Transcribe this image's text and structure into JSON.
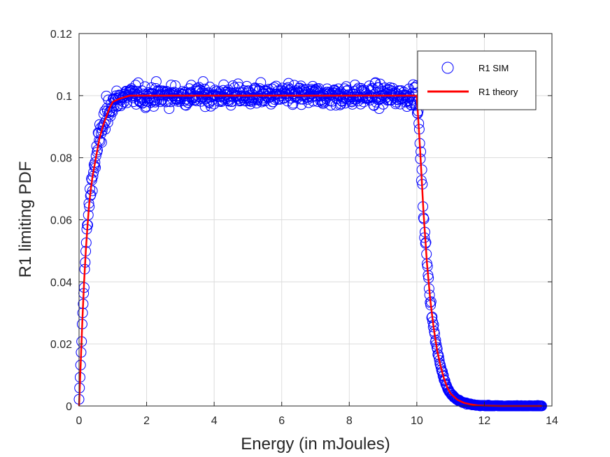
{
  "chart_data": {
    "type": "scatter",
    "title": "",
    "xlabel": "Energy (in mJoules)",
    "ylabel": "R1 limiting PDF",
    "xlim": [
      0,
      14
    ],
    "ylim": [
      0,
      0.12
    ],
    "xticks": [
      0,
      2,
      4,
      6,
      8,
      10,
      12,
      14
    ],
    "yticks": [
      0,
      0.02,
      0.04,
      0.06,
      0.08,
      0.1,
      0.12
    ],
    "xtick_labels": [
      "0",
      "2",
      "4",
      "6",
      "8",
      "10",
      "12",
      "14"
    ],
    "ytick_labels": [
      "0",
      "0.02",
      "0.04",
      "0.06",
      "0.08",
      "0.1",
      "0.12"
    ],
    "grid": true,
    "legend_position": "top-right",
    "series": [
      {
        "name": "R1 SIM",
        "kind": "scatter-circle",
        "color": "#0000ff",
        "x": [
          0.0,
          0.05,
          0.1,
          0.15,
          0.2,
          0.25,
          0.3,
          0.35,
          0.4,
          0.5,
          0.6,
          0.7,
          0.8,
          0.9,
          1.0,
          1.2,
          1.5,
          2,
          2.5,
          3,
          3.5,
          4,
          4.5,
          5,
          5.5,
          6,
          6.5,
          7,
          7.5,
          8,
          8.5,
          9,
          9.5,
          10.0,
          10.1,
          10.2,
          10.3,
          10.4,
          10.5,
          10.6,
          10.7,
          10.8,
          10.9,
          11.0,
          11.2,
          11.4,
          11.6,
          11.8,
          12,
          12.5,
          13,
          13.5,
          13.7
        ],
        "y": [
          0.002,
          0.014,
          0.028,
          0.04,
          0.05,
          0.058,
          0.065,
          0.07,
          0.074,
          0.08,
          0.086,
          0.09,
          0.093,
          0.096,
          0.098,
          0.099,
          0.1,
          0.1,
          0.1,
          0.1,
          0.1,
          0.1,
          0.1,
          0.1,
          0.1,
          0.1,
          0.1,
          0.1,
          0.1,
          0.1,
          0.1,
          0.1,
          0.1,
          0.1,
          0.082,
          0.062,
          0.046,
          0.034,
          0.025,
          0.018,
          0.013,
          0.009,
          0.006,
          0.004,
          0.002,
          0.001,
          0.0005,
          0.0002,
          0.0001,
          0.0,
          0.0,
          0.0,
          0.0
        ]
      },
      {
        "name": "R1 theory",
        "kind": "line",
        "color": "#ff0000",
        "x": [
          0.0,
          0.05,
          0.1,
          0.15,
          0.2,
          0.25,
          0.3,
          0.35,
          0.4,
          0.5,
          0.6,
          0.7,
          0.8,
          0.9,
          1.0,
          1.2,
          1.5,
          2,
          3,
          4,
          5,
          6,
          7,
          8,
          9,
          9.99,
          10.0,
          10.1,
          10.2,
          10.3,
          10.4,
          10.5,
          10.6,
          10.7,
          10.8,
          10.9,
          11.0,
          11.2,
          11.4,
          11.6,
          11.8,
          12,
          12.5,
          13,
          13.5,
          13.7
        ],
        "y": [
          0.0,
          0.014,
          0.028,
          0.04,
          0.05,
          0.058,
          0.065,
          0.07,
          0.074,
          0.08,
          0.086,
          0.09,
          0.093,
          0.096,
          0.098,
          0.099,
          0.1,
          0.1,
          0.1,
          0.1,
          0.1,
          0.1,
          0.1,
          0.1,
          0.1,
          0.1,
          0.1,
          0.082,
          0.062,
          0.046,
          0.034,
          0.025,
          0.018,
          0.013,
          0.009,
          0.006,
          0.004,
          0.002,
          0.001,
          0.0005,
          0.0002,
          0.0001,
          0.0,
          0.0,
          0.0,
          0.0
        ]
      }
    ],
    "legend": [
      "R1 SIM",
      "R1 theory"
    ]
  }
}
